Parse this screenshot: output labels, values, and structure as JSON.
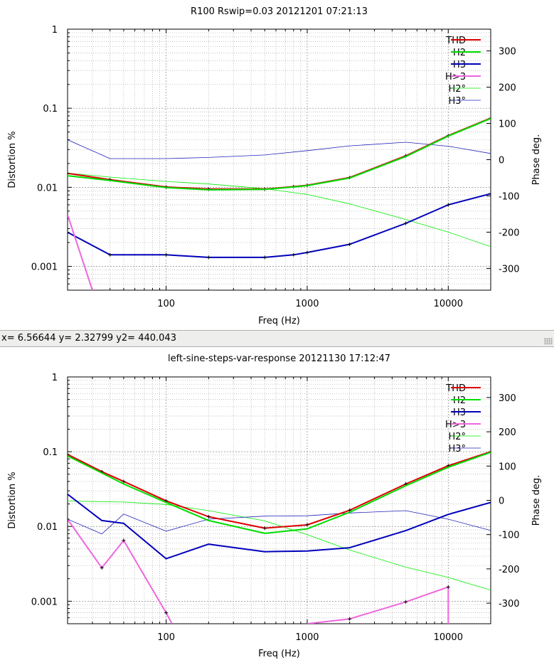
{
  "window": {
    "status_text": "x= 6.56644 y= 2.32799 y2= 440.043"
  },
  "chart_data": [
    {
      "type": "line",
      "title": "R100 Rswip=0.03 20121201 07:21:13",
      "xlabel": "Freq (Hz)",
      "ylabel": "Distortion %",
      "y2label": "Phase deg.",
      "xscale": "log",
      "yscale": "log",
      "xlim": [
        20,
        20000
      ],
      "ylim": [
        0.0005,
        1
      ],
      "y2lim": [
        -360,
        360
      ],
      "xticks": [
        {
          "v": 100,
          "label": "100"
        },
        {
          "v": 1000,
          "label": "1000"
        },
        {
          "v": 10000,
          "label": "10000"
        }
      ],
      "yticks": [
        {
          "v": 1,
          "label": "1"
        },
        {
          "v": 0.1,
          "label": "0.1"
        },
        {
          "v": 0.01,
          "label": "0.01"
        },
        {
          "v": 0.001,
          "label": "0.001"
        }
      ],
      "y2ticks": [
        {
          "v": 300,
          "label": "300"
        },
        {
          "v": 200,
          "label": "200"
        },
        {
          "v": 100,
          "label": "100"
        },
        {
          "v": 0,
          "label": "0"
        },
        {
          "v": -100,
          "label": "-100"
        },
        {
          "v": -200,
          "label": "-200"
        },
        {
          "v": -300,
          "label": "-300"
        }
      ],
      "grid": true,
      "legend_position": "top-right",
      "series": [
        {
          "name": "THD",
          "color": "#dd0000",
          "width": 2,
          "axis": "y",
          "markers": true,
          "x": [
            20,
            40,
            100,
            200,
            500,
            800,
            1000,
            2000,
            5000,
            10000,
            20000
          ],
          "y": [
            0.015,
            0.0125,
            0.0101,
            0.0095,
            0.0095,
            0.0102,
            0.0106,
            0.0133,
            0.025,
            0.045,
            0.075
          ]
        },
        {
          "name": "H2",
          "color": "#00dd00",
          "width": 2,
          "axis": "y",
          "markers": false,
          "x": [
            20,
            40,
            100,
            200,
            500,
            800,
            1000,
            2000,
            5000,
            10000,
            20000
          ],
          "y": [
            0.014,
            0.0122,
            0.0099,
            0.0093,
            0.0094,
            0.0101,
            0.0105,
            0.0131,
            0.0245,
            0.0445,
            0.074
          ]
        },
        {
          "name": "H3",
          "color": "#0000bb",
          "width": 2,
          "axis": "y",
          "markers": true,
          "x": [
            20,
            40,
            100,
            200,
            500,
            800,
            1000,
            2000,
            5000,
            10000,
            20000
          ],
          "y": [
            0.0027,
            0.0014,
            0.0014,
            0.0013,
            0.0013,
            0.0014,
            0.0015,
            0.0019,
            0.0035,
            0.006,
            0.0083
          ]
        },
        {
          "name": "H>3",
          "color": "#ee66dd",
          "width": 2,
          "axis": "y",
          "markers": false,
          "x": [
            20,
            30
          ],
          "y": [
            0.0045,
            0.0005
          ]
        },
        {
          "name": "H2°",
          "color": "#00ee00",
          "width": 0.8,
          "axis": "y2",
          "markers": false,
          "x": [
            20,
            40,
            100,
            200,
            500,
            1000,
            2000,
            5000,
            10000,
            20000
          ],
          "y": [
            -37,
            -48,
            -60,
            -67,
            -80,
            -96,
            -122,
            -165,
            -200,
            -240
          ]
        },
        {
          "name": "H3°",
          "color": "#2222bb",
          "width": 0.8,
          "axis": "y2",
          "markers": false,
          "x": [
            20,
            40,
            100,
            200,
            500,
            1000,
            2000,
            5000,
            10000,
            20000
          ],
          "y": [
            55,
            3,
            3,
            6,
            13,
            25,
            38,
            48,
            37,
            17
          ]
        }
      ]
    },
    {
      "type": "line",
      "title": "left-sine-steps-var-response 20121130 17:12:47",
      "xlabel": "Freq (Hz)",
      "ylabel": "Distortion %",
      "y2label": "Phase deg.",
      "xscale": "log",
      "yscale": "log",
      "xlim": [
        20,
        20000
      ],
      "ylim": [
        0.0005,
        1
      ],
      "y2lim": [
        -360,
        360
      ],
      "xticks": [
        {
          "v": 100,
          "label": "100"
        },
        {
          "v": 1000,
          "label": "1000"
        },
        {
          "v": 10000,
          "label": "10000"
        }
      ],
      "yticks": [
        {
          "v": 1,
          "label": "1"
        },
        {
          "v": 0.1,
          "label": "0.1"
        },
        {
          "v": 0.01,
          "label": "0.01"
        },
        {
          "v": 0.001,
          "label": "0.001"
        }
      ],
      "y2ticks": [
        {
          "v": 300,
          "label": "300"
        },
        {
          "v": 200,
          "label": "200"
        },
        {
          "v": 100,
          "label": "100"
        },
        {
          "v": 0,
          "label": "0"
        },
        {
          "v": -100,
          "label": "-100"
        },
        {
          "v": -200,
          "label": "-200"
        },
        {
          "v": -300,
          "label": "-300"
        }
      ],
      "grid": true,
      "legend_position": "top-right",
      "series": [
        {
          "name": "THD",
          "color": "#dd0000",
          "width": 2,
          "axis": "y",
          "markers": true,
          "x": [
            20,
            35,
            50,
            100,
            200,
            500,
            1000,
            2000,
            5000,
            10000,
            20000
          ],
          "y": [
            0.092,
            0.054,
            0.04,
            0.022,
            0.0135,
            0.0095,
            0.0105,
            0.0165,
            0.037,
            0.065,
            0.1
          ]
        },
        {
          "name": "H2",
          "color": "#00dd00",
          "width": 2,
          "axis": "y",
          "markers": false,
          "x": [
            20,
            35,
            50,
            100,
            200,
            500,
            1000,
            2000,
            5000,
            10000,
            20000
          ],
          "y": [
            0.088,
            0.052,
            0.037,
            0.021,
            0.012,
            0.0081,
            0.0093,
            0.0155,
            0.035,
            0.062,
            0.098
          ]
        },
        {
          "name": "H3",
          "color": "#0000bb",
          "width": 2,
          "axis": "y",
          "markers": false,
          "x": [
            20,
            35,
            50,
            100,
            200,
            500,
            1000,
            2000,
            5000,
            10000,
            20000
          ],
          "y": [
            0.027,
            0.012,
            0.011,
            0.0037,
            0.0058,
            0.0046,
            0.0047,
            0.0052,
            0.0088,
            0.0145,
            0.021
          ]
        },
        {
          "name": "H>3",
          "color": "#ee66dd",
          "width": 2,
          "axis": "y",
          "markers": true,
          "x": [
            20,
            35,
            50,
            100,
            110
          ],
          "y": [
            0.0125,
            0.0028,
            0.0065,
            0.0007,
            0.0005
          ]
        },
        {
          "name": "H>3",
          "color": "#ee66dd",
          "width": 2,
          "axis": "y",
          "markers": true,
          "x": [
            1000,
            2000,
            5000,
            10000,
            10000
          ],
          "y": [
            0.0005,
            0.00058,
            0.00098,
            0.00155,
            0.0005
          ]
        },
        {
          "name": "H2°",
          "color": "#00ee00",
          "width": 0.8,
          "axis": "y2",
          "markers": false,
          "x": [
            20,
            50,
            100,
            200,
            500,
            1000,
            2000,
            5000,
            10000,
            20000
          ],
          "y": [
            -2,
            -5,
            -12,
            -30,
            -60,
            -100,
            -145,
            -195,
            -225,
            -262
          ]
        },
        {
          "name": "H3°",
          "color": "#2222bb",
          "width": 0.8,
          "axis": "y2",
          "markers": false,
          "x": [
            20,
            35,
            50,
            100,
            200,
            500,
            1000,
            2000,
            5000,
            10000,
            20000
          ],
          "y": [
            -55,
            -98,
            -40,
            -90,
            -55,
            -46,
            -45,
            -37,
            -30,
            -55,
            -88
          ]
        }
      ]
    }
  ]
}
